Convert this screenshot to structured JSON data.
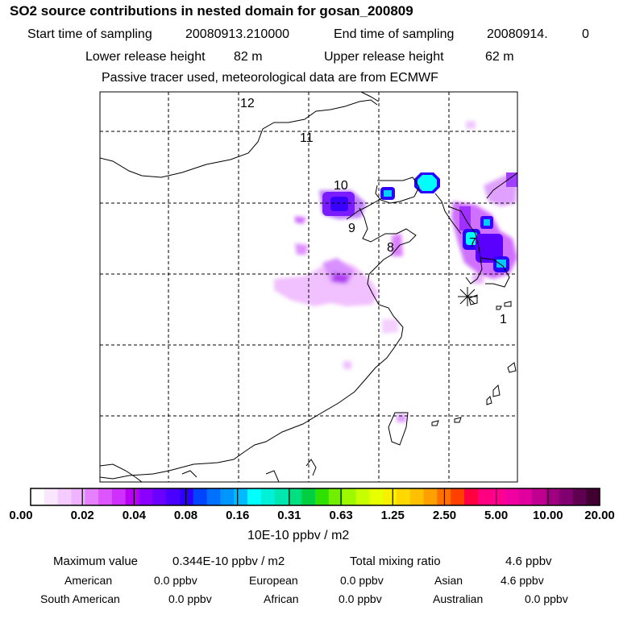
{
  "header": {
    "title": "SO2 source contributions in nested domain for gosan_200809",
    "start_label": "Start time of sampling",
    "start_value": "20080913.210000",
    "end_label": "End time of sampling",
    "end_value": "20080914.",
    "end_extra": "0",
    "lower_label": "Lower release height",
    "lower_value": "82 m",
    "upper_label": "Upper release height",
    "upper_value": "62 m",
    "note": "Passive tracer used, meteorological data are from ECMWF"
  },
  "map": {
    "trajectory_points": [
      {
        "label": "1",
        "marker": "1"
      },
      {
        "label": "7",
        "marker": "7"
      },
      {
        "label": "8",
        "marker": "8"
      },
      {
        "label": "9",
        "marker": "9"
      },
      {
        "label": "10",
        "marker": "10"
      },
      {
        "label": "11",
        "marker": "11"
      },
      {
        "label": "12",
        "marker": "12"
      }
    ],
    "receptor_symbol": "star-icon"
  },
  "colorbar": {
    "tick_labels": [
      "0.00",
      "0.02",
      "0.04",
      "0.08",
      "0.16",
      "0.31",
      "0.63",
      "1.25",
      "2.50",
      "5.00",
      "10.00",
      "20.00"
    ],
    "colors": [
      "#ffffff",
      "#fbe6ff",
      "#f5ccff",
      "#efb3ff",
      "#e580ff",
      "#dd55ff",
      "#d030ff",
      "#b800f5",
      "#8a00ff",
      "#6a00ff",
      "#4a00ff",
      "#2a00ff",
      "#0044ff",
      "#0070ff",
      "#0096ff",
      "#00bbff",
      "#00ffff",
      "#00f0d8",
      "#00e8b0",
      "#00e080",
      "#00d040",
      "#30e000",
      "#70f000",
      "#a0f800",
      "#c8ff00",
      "#e8ff00",
      "#f8f000",
      "#ffd800",
      "#ffc000",
      "#ffa000",
      "#ff7000",
      "#ff4000",
      "#ff0040",
      "#ff0080",
      "#ff0090",
      "#f000a0",
      "#e000a0",
      "#c00090",
      "#a00080",
      "#800070",
      "#600050",
      "#400030"
    ],
    "unit_label": "10E-10 ppbv / m2"
  },
  "summary": {
    "max_label": "Maximum value",
    "max_value": "0.344E-10 ppbv / m2",
    "total_label": "Total mixing ratio",
    "total_value": "4.6 ppbv",
    "regions": [
      {
        "name": "American",
        "value": "0.0 ppbv"
      },
      {
        "name": "European",
        "value": "0.0 ppbv"
      },
      {
        "name": "Asian",
        "value": "4.6 ppbv"
      },
      {
        "name": "South American",
        "value": "0.0 ppbv"
      },
      {
        "name": "African",
        "value": "0.0 ppbv"
      },
      {
        "name": "Australian",
        "value": "0.0 ppbv"
      }
    ]
  }
}
